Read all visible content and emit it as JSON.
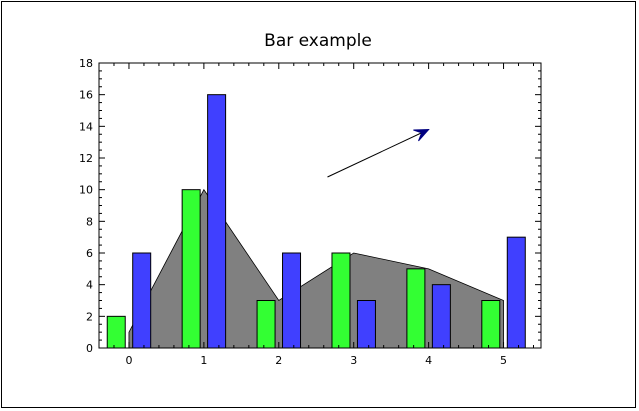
{
  "chart_data": {
    "type": "bar",
    "title": "Bar example",
    "xlabel": "",
    "ylabel": "",
    "xlim": [
      -0.4,
      5.5
    ],
    "ylim": [
      0,
      18
    ],
    "xticks": [
      0,
      1,
      2,
      3,
      4,
      5
    ],
    "yticks": [
      0,
      2,
      4,
      6,
      8,
      10,
      12,
      14,
      16,
      18
    ],
    "grid": false,
    "legend": "none",
    "categories": [
      0,
      1,
      2,
      3,
      4,
      5
    ],
    "series": [
      {
        "type": "bar",
        "color": "#33ff33",
        "x": [
          -0.17,
          0.83,
          1.83,
          2.83,
          3.83,
          4.83
        ],
        "values": [
          2,
          10,
          3,
          6,
          5,
          3
        ]
      },
      {
        "type": "bar",
        "color": "#4040ff",
        "x": [
          0.17,
          1.17,
          2.17,
          3.17,
          4.17,
          5.17
        ],
        "values": [
          6,
          16,
          6,
          3,
          4,
          7
        ]
      },
      {
        "type": "area",
        "color": "#808080",
        "x": [
          0,
          0,
          1,
          2,
          3,
          4,
          5,
          5
        ],
        "values": [
          0,
          1,
          10,
          3,
          6,
          5,
          3,
          0
        ]
      }
    ],
    "annotations": [
      {
        "type": "arrow",
        "color": "#000080",
        "from": [
          2.65,
          10.8
        ],
        "to": [
          4.0,
          13.8
        ]
      }
    ]
  }
}
